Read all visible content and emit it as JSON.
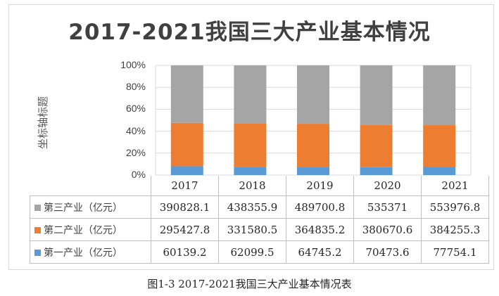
{
  "caption": "图1-3 2017-2021我国三大产业基本情况表",
  "chart_data": {
    "type": "bar",
    "stacked": "percent",
    "title": "2017-2021我国三大产业基本情况",
    "ylabel": "坐标轴标题",
    "xlabel": "",
    "ylim": [
      0,
      100
    ],
    "yticks": [
      "0%",
      "20%",
      "40%",
      "60%",
      "80%",
      "100%"
    ],
    "categories": [
      "2017",
      "2018",
      "2019",
      "2020",
      "2021"
    ],
    "series": [
      {
        "name": "第三产业（亿元）",
        "color": "#a5a5a5",
        "values": [
          "390828.1",
          "438355.9",
          "489700.8",
          "535371",
          "553976.8"
        ]
      },
      {
        "name": "第二产业（亿元）",
        "color": "#ed7d31",
        "values": [
          "295427.8",
          "331580.5",
          "364835.2",
          "380670.6",
          "384255.3"
        ]
      },
      {
        "name": "第一产业（亿元）",
        "color": "#5b9bd5",
        "values": [
          "60139.2",
          "62099.5",
          "64745.2",
          "70473.6",
          "77754.1"
        ]
      }
    ],
    "grid": true,
    "legend": "data-table"
  }
}
